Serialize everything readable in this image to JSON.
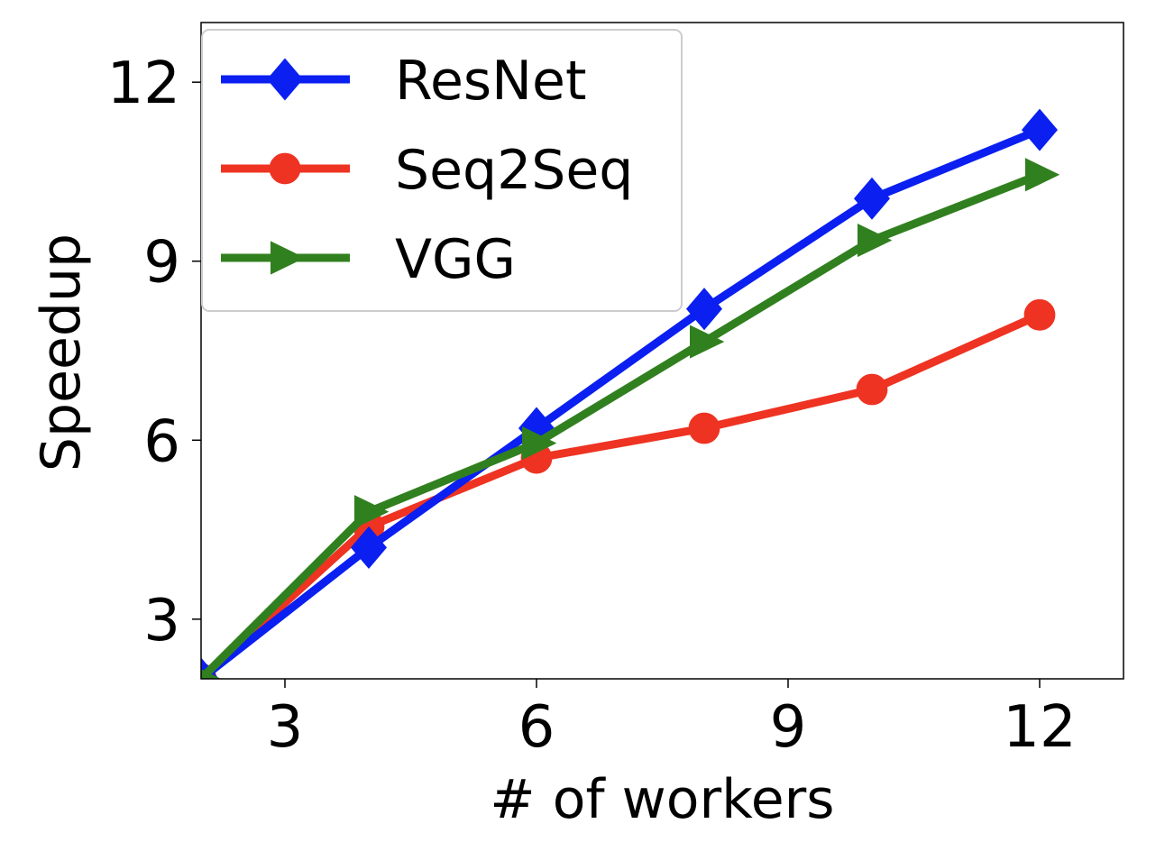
{
  "chart_data": {
    "type": "line",
    "title": "",
    "xlabel": "# of workers",
    "ylabel": "Speedup",
    "xlim": [
      2,
      13
    ],
    "ylim": [
      2,
      13
    ],
    "xticks": [
      3,
      6,
      9,
      12
    ],
    "yticks": [
      3,
      6,
      9,
      12
    ],
    "grid": false,
    "legend_position": "top-left",
    "series": [
      {
        "name": "ResNet",
        "color": "#0a1ff0",
        "marker": "diamond",
        "x": [
          2,
          4,
          6,
          8,
          10,
          12
        ],
        "y": [
          2.0,
          4.2,
          6.2,
          8.2,
          10.05,
          11.2
        ]
      },
      {
        "name": "Seq2Seq",
        "color": "#ee3322",
        "marker": "circle",
        "x": [
          2,
          4,
          6,
          8,
          10,
          12
        ],
        "y": [
          2.0,
          4.55,
          5.7,
          6.2,
          6.85,
          8.1
        ]
      },
      {
        "name": "VGG",
        "color": "#31801f",
        "marker": "triangle-right",
        "x": [
          2,
          4,
          6,
          8,
          10,
          12
        ],
        "y": [
          2.0,
          4.8,
          5.95,
          7.65,
          9.35,
          10.45
        ]
      }
    ]
  }
}
